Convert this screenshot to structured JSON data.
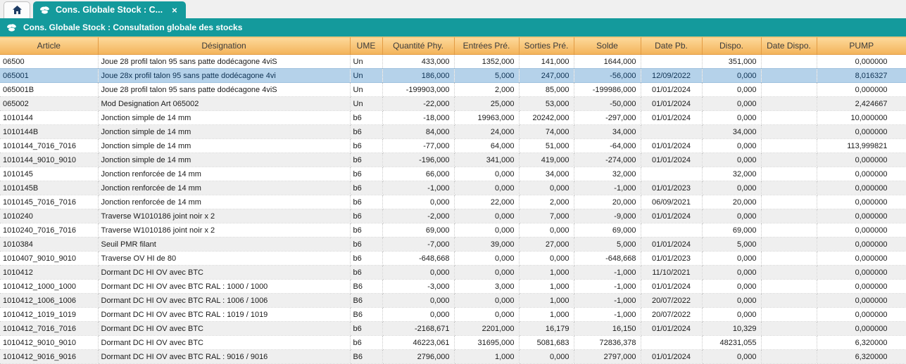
{
  "colors": {
    "teal_accent": "#149a9c",
    "header_gradient_top": "#fdd99b",
    "header_gradient_bottom": "#f3b35a",
    "selected_row": "#b5d2ea",
    "alt_row": "#efefef",
    "home_icon": "#1e3c64"
  },
  "tab_bar": {
    "home_tab": {
      "icon": "home-icon"
    },
    "active_tab": {
      "icon": "stock-consultation-icon",
      "label": "Cons. Globale Stock : C...",
      "close_glyph": "×"
    }
  },
  "title_bar": {
    "icon": "stock-consultation-icon",
    "title": "Cons. Globale Stock : Consultation globale des stocks"
  },
  "table": {
    "columns": [
      {
        "key": "article",
        "label": "Article"
      },
      {
        "key": "designation",
        "label": "Désignation"
      },
      {
        "key": "ume",
        "label": "UME"
      },
      {
        "key": "quantite_phy",
        "label": "Quantité Phy."
      },
      {
        "key": "entrees_pre",
        "label": "Entrées Pré."
      },
      {
        "key": "sorties_pre",
        "label": "Sorties Pré."
      },
      {
        "key": "solde",
        "label": "Solde"
      },
      {
        "key": "date_pb",
        "label": "Date Pb."
      },
      {
        "key": "dispo",
        "label": "Dispo."
      },
      {
        "key": "date_dispo",
        "label": "Date Dispo."
      },
      {
        "key": "pump",
        "label": "PUMP"
      }
    ],
    "selected_row_index": 1,
    "rows": [
      [
        "06500",
        "Joue 28 profil talon 95 sans patte dodécagone 4viS",
        "Un",
        "433,000",
        "1352,000",
        "141,000",
        "1644,000",
        "",
        "351,000",
        "",
        "0,000000"
      ],
      [
        "065001",
        "Joue 28x profil talon 95 sans patte dodécagone 4vi",
        "Un",
        "186,000",
        "5,000",
        "247,000",
        "-56,000",
        "12/09/2022",
        "0,000",
        "",
        "8,016327"
      ],
      [
        "065001B",
        "Joue 28 profil talon 95 sans patte dodécagone 4viS",
        "Un",
        "-199903,000",
        "2,000",
        "85,000",
        "-199986,000",
        "01/01/2024",
        "0,000",
        "",
        "0,000000"
      ],
      [
        "065002",
        "Mod Designation Art 065002",
        "Un",
        "-22,000",
        "25,000",
        "53,000",
        "-50,000",
        "01/01/2024",
        "0,000",
        "",
        "2,424667"
      ],
      [
        "1010144",
        "Jonction simple de 14 mm",
        "b6",
        "-18,000",
        "19963,000",
        "20242,000",
        "-297,000",
        "01/01/2024",
        "0,000",
        "",
        "10,000000"
      ],
      [
        "1010144B",
        "Jonction simple de 14 mm",
        "b6",
        "84,000",
        "24,000",
        "74,000",
        "34,000",
        "",
        "34,000",
        "",
        "0,000000"
      ],
      [
        "1010144_7016_7016",
        "Jonction simple de 14 mm",
        "b6",
        "-77,000",
        "64,000",
        "51,000",
        "-64,000",
        "01/01/2024",
        "0,000",
        "",
        "113,999821"
      ],
      [
        "1010144_9010_9010",
        "Jonction simple de 14 mm",
        "b6",
        "-196,000",
        "341,000",
        "419,000",
        "-274,000",
        "01/01/2024",
        "0,000",
        "",
        "0,000000"
      ],
      [
        "1010145",
        "Jonction renforcée de 14 mm",
        "b6",
        "66,000",
        "0,000",
        "34,000",
        "32,000",
        "",
        "32,000",
        "",
        "0,000000"
      ],
      [
        "1010145B",
        "Jonction renforcée de 14 mm",
        "b6",
        "-1,000",
        "0,000",
        "0,000",
        "-1,000",
        "01/01/2023",
        "0,000",
        "",
        "0,000000"
      ],
      [
        "1010145_7016_7016",
        "Jonction renforcée de 14 mm",
        "b6",
        "0,000",
        "22,000",
        "2,000",
        "20,000",
        "06/09/2021",
        "20,000",
        "",
        "0,000000"
      ],
      [
        "1010240",
        "Traverse W1010186 joint noir x 2",
        "b6",
        "-2,000",
        "0,000",
        "7,000",
        "-9,000",
        "01/01/2024",
        "0,000",
        "",
        "0,000000"
      ],
      [
        "1010240_7016_7016",
        "Traverse W1010186 joint noir x 2",
        "b6",
        "69,000",
        "0,000",
        "0,000",
        "69,000",
        "",
        "69,000",
        "",
        "0,000000"
      ],
      [
        "1010384",
        "Seuil PMR filant",
        "b6",
        "-7,000",
        "39,000",
        "27,000",
        "5,000",
        "01/01/2024",
        "5,000",
        "",
        "0,000000"
      ],
      [
        "1010407_9010_9010",
        "Traverse OV HI de 80",
        "b6",
        "-648,668",
        "0,000",
        "0,000",
        "-648,668",
        "01/01/2023",
        "0,000",
        "",
        "0,000000"
      ],
      [
        "1010412",
        "Dormant DC HI OV avec BTC",
        "b6",
        "0,000",
        "0,000",
        "1,000",
        "-1,000",
        "11/10/2021",
        "0,000",
        "",
        "0,000000"
      ],
      [
        "1010412_1000_1000",
        "Dormant DC HI OV avec BTC RAL : 1000 / 1000",
        "B6",
        "-3,000",
        "3,000",
        "1,000",
        "-1,000",
        "01/01/2024",
        "0,000",
        "",
        "0,000000"
      ],
      [
        "1010412_1006_1006",
        "Dormant DC HI OV avec BTC RAL : 1006 / 1006",
        "B6",
        "0,000",
        "0,000",
        "1,000",
        "-1,000",
        "20/07/2022",
        "0,000",
        "",
        "0,000000"
      ],
      [
        "1010412_1019_1019",
        "Dormant DC HI OV avec BTC RAL : 1019 / 1019",
        "B6",
        "0,000",
        "0,000",
        "1,000",
        "-1,000",
        "20/07/2022",
        "0,000",
        "",
        "0,000000"
      ],
      [
        "1010412_7016_7016",
        "Dormant DC HI OV avec BTC",
        "b6",
        "-2168,671",
        "2201,000",
        "16,179",
        "16,150",
        "01/01/2024",
        "10,329",
        "",
        "0,000000"
      ],
      [
        "1010412_9010_9010",
        "Dormant DC HI OV avec BTC",
        "b6",
        "46223,061",
        "31695,000",
        "5081,683",
        "72836,378",
        "",
        "48231,055",
        "",
        "6,320000"
      ],
      [
        "1010412_9016_9016",
        "Dormant DC HI OV avec BTC RAL : 9016 / 9016",
        "B6",
        "2796,000",
        "1,000",
        "0,000",
        "2797,000",
        "01/01/2024",
        "0,000",
        "",
        "6,320000"
      ]
    ]
  }
}
